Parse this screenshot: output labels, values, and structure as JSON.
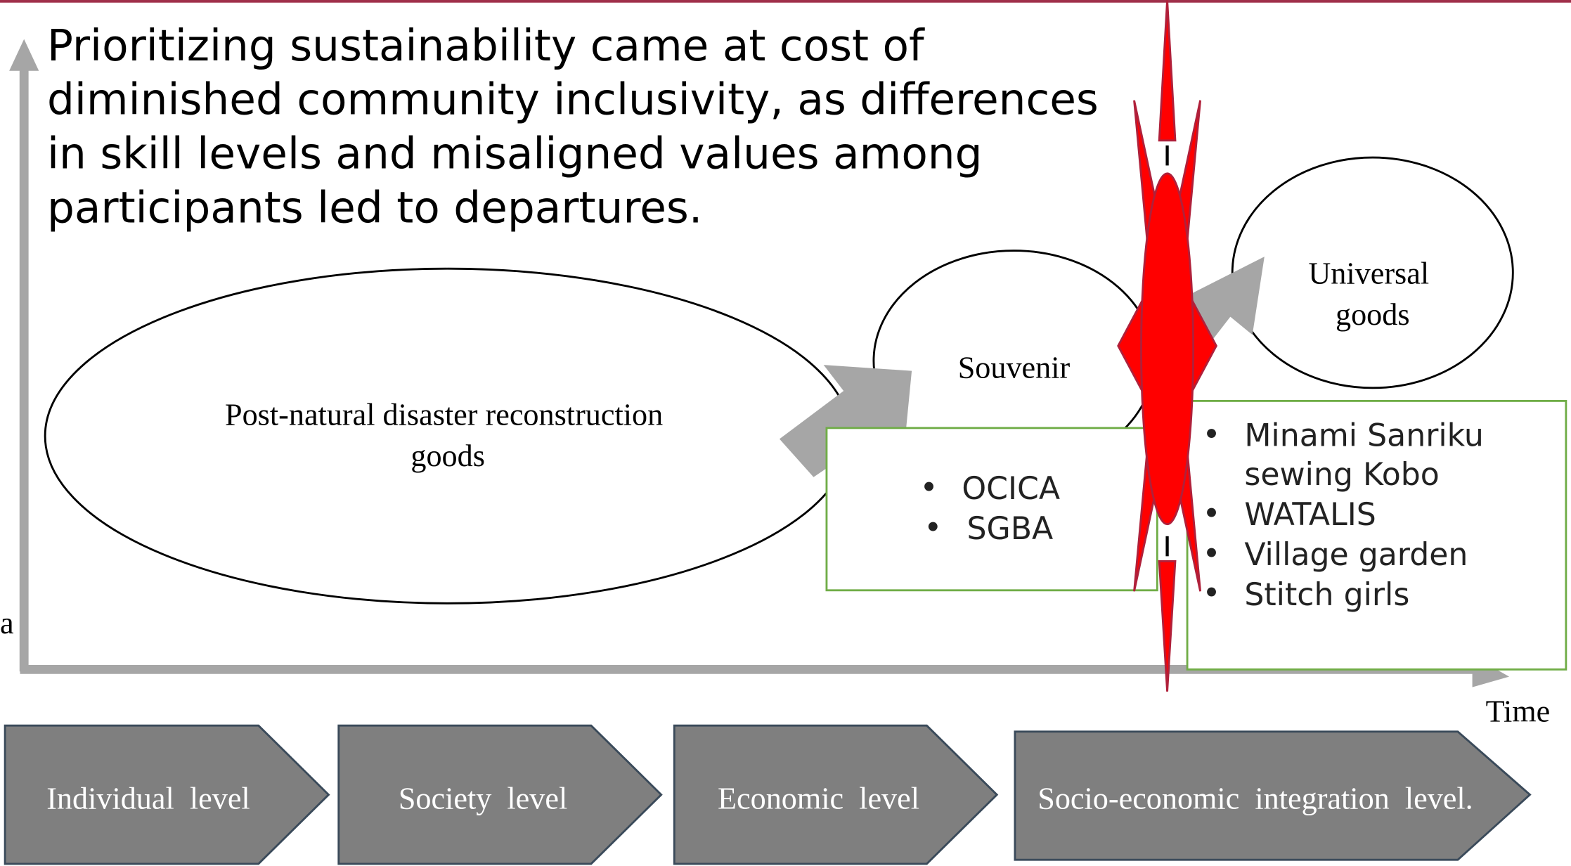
{
  "caption": [
    "Prioritizing sustainability came at cost of",
    "diminished community inclusivity, as differences",
    "in skill levels and misaligned values among",
    "participants led to departures."
  ],
  "axis": {
    "y_fragment": "a",
    "x_label": "Time"
  },
  "nodes": [
    {
      "label": [
        "Post-natural disaster reconstruction",
        "goods"
      ]
    },
    {
      "label": [
        "Souvenir"
      ],
      "items": [
        "OCICA",
        "SGBA"
      ]
    },
    {
      "label": [
        "Universal",
        "goods"
      ],
      "items": [
        "Minami Sanriku",
        "sewing Kobo",
        "WATALIS",
        "Village garden",
        "Stitch girls"
      ]
    }
  ],
  "levels": [
    "Individual  level",
    "Society  level",
    "Economic  level",
    "Socio-economic  integration  level."
  ]
}
